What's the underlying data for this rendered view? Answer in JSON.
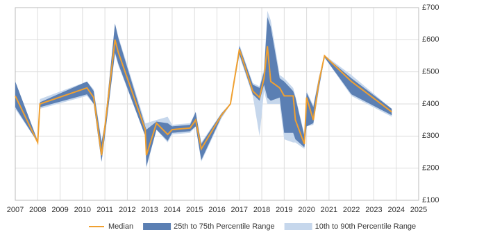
{
  "chart_data": {
    "type": "band-line",
    "x": [
      2007.0,
      2008.0,
      2008.1,
      2010.2,
      2010.5,
      2010.85,
      2011.0,
      2011.45,
      2011.6,
      2012.8,
      2012.85,
      2013.3,
      2013.8,
      2014.0,
      2014.8,
      2015.05,
      2015.3,
      2016.2,
      2016.6,
      2017.0,
      2017.6,
      2017.9,
      2018.1,
      2018.25,
      2018.4,
      2018.8,
      2019.0,
      2019.4,
      2019.5,
      2019.9,
      2020.0,
      2020.3,
      2020.55,
      2020.8,
      2022.0,
      2023.8
    ],
    "series": [
      {
        "name": "10th to 90th Percentile Range",
        "color": "#c6d7ec",
        "lower": [
          385,
          280,
          385,
          425,
          400,
          220,
          300,
          555,
          520,
          300,
          200,
          320,
          280,
          305,
          310,
          330,
          220,
          355,
          398,
          550,
          425,
          300,
          440,
          400,
          400,
          400,
          290,
          280,
          280,
          260,
          330,
          335,
          445,
          545,
          425,
          360
        ],
        "upper": [
          470,
          285,
          415,
          470,
          445,
          285,
          340,
          650,
          610,
          340,
          340,
          350,
          360,
          335,
          340,
          375,
          280,
          372,
          402,
          585,
          465,
          455,
          510,
          690,
          660,
          490,
          480,
          450,
          425,
          305,
          440,
          395,
          485,
          552,
          490,
          385
        ]
      },
      {
        "name": "25th to 75th Percentile Range",
        "color": "#5b7fb3",
        "lower": [
          390,
          280,
          390,
          430,
          400,
          220,
          300,
          560,
          525,
          300,
          205,
          320,
          285,
          310,
          315,
          330,
          225,
          360,
          398,
          555,
          430,
          410,
          460,
          420,
          410,
          420,
          310,
          310,
          290,
          265,
          330,
          340,
          450,
          545,
          430,
          365
        ],
        "upper": [
          470,
          285,
          405,
          470,
          440,
          280,
          340,
          650,
          605,
          330,
          320,
          345,
          340,
          330,
          335,
          375,
          275,
          370,
          402,
          580,
          460,
          450,
          500,
          670,
          640,
          480,
          470,
          440,
          420,
          300,
          435,
          390,
          480,
          550,
          480,
          385
        ]
      },
      {
        "name": "Median",
        "color": "#f0a030",
        "values": [
          425,
          280,
          400,
          450,
          420,
          240,
          330,
          600,
          560,
          320,
          240,
          340,
          305,
          320,
          325,
          350,
          260,
          365,
          400,
          570,
          440,
          420,
          480,
          580,
          470,
          450,
          425,
          425,
          350,
          275,
          420,
          350,
          470,
          550,
          470,
          375
        ]
      }
    ],
    "xlim": [
      2007,
      2025
    ],
    "xticks": [
      2007,
      2008,
      2009,
      2010,
      2011,
      2012,
      2013,
      2014,
      2015,
      2016,
      2017,
      2018,
      2019,
      2020,
      2021,
      2022,
      2023,
      2024,
      2025
    ],
    "ylim": [
      100,
      700
    ],
    "yticks": [
      {
        "value": 100,
        "label": "£100"
      },
      {
        "value": 200,
        "label": "£200"
      },
      {
        "value": 300,
        "label": "£300"
      },
      {
        "value": 400,
        "label": "£400"
      },
      {
        "value": 500,
        "label": "£500"
      },
      {
        "value": 600,
        "label": "£600"
      },
      {
        "value": 700,
        "label": "£700"
      }
    ],
    "grid": true
  }
}
